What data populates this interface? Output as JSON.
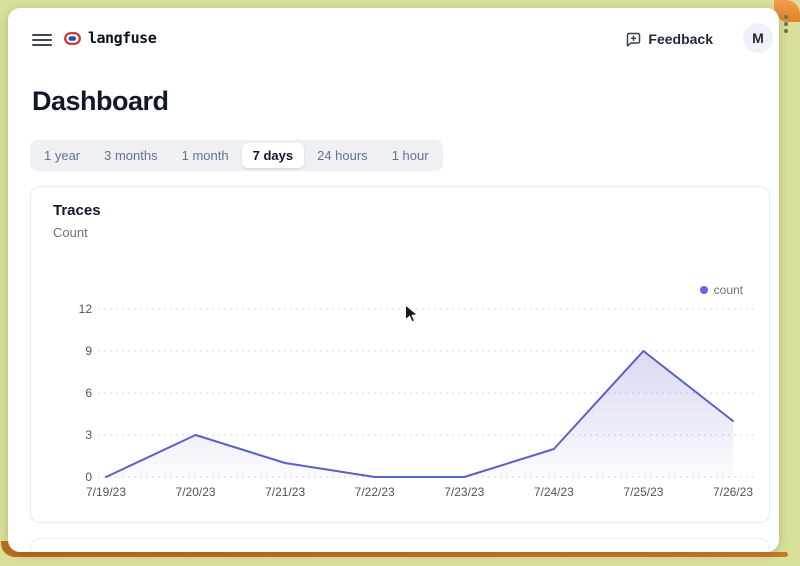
{
  "header": {
    "brand": "langfuse",
    "feedback_label": "Feedback",
    "avatar_initial": "M"
  },
  "page_title": "Dashboard",
  "time_tabs": {
    "selected": "7 days",
    "items": [
      {
        "label": "1 year",
        "active": false
      },
      {
        "label": "3 months",
        "active": false
      },
      {
        "label": "1 month",
        "active": false
      },
      {
        "label": "7 days",
        "active": true
      },
      {
        "label": "24 hours",
        "active": false
      },
      {
        "label": "1 hour",
        "active": false
      }
    ]
  },
  "card": {
    "title": "Traces",
    "subtitle": "Count",
    "legend": [
      {
        "label": "count",
        "color": "#6366f1"
      }
    ]
  },
  "chart_data": {
    "type": "area",
    "title": "Traces",
    "ylabel": "Count",
    "categories": [
      "7/19/23",
      "7/20/23",
      "7/21/23",
      "7/22/23",
      "7/23/23",
      "7/24/23",
      "7/25/23",
      "7/26/23"
    ],
    "series": [
      {
        "name": "count",
        "color": "#5b5fc7",
        "values": [
          0,
          3,
          1,
          0,
          0,
          2,
          9,
          4
        ]
      }
    ],
    "yticks": [
      0,
      3,
      6,
      9,
      12
    ],
    "ylim": [
      0,
      12
    ],
    "grid": "horizontal-dashed",
    "legend_position": "top-right"
  },
  "colors": {
    "accent": "#6366f1",
    "line": "#5b5fc7",
    "area_fill": "#6366f1",
    "grid_line": "#d6d7dc",
    "tick_text": "#52525b",
    "frame_green": "#d9e09c",
    "frame_orange": "#e8923c"
  }
}
